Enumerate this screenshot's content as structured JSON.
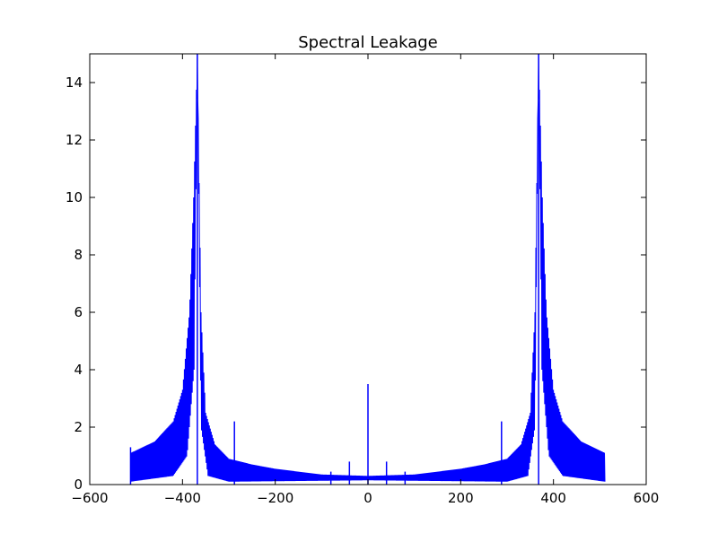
{
  "chart_data": {
    "type": "line",
    "title": "Spectral Leakage",
    "xlabel": "",
    "ylabel": "",
    "xlim": [
      -600,
      600
    ],
    "ylim": [
      0,
      15
    ],
    "x_ticks": [
      -600,
      -400,
      -200,
      0,
      200,
      400,
      600
    ],
    "y_ticks": [
      0,
      2,
      4,
      6,
      8,
      10,
      12,
      14
    ],
    "grid": false,
    "series": [
      {
        "color": "#0000ff",
        "x_range": [
          -512,
          511
        ],
        "peaks": [
          {
            "x": -368,
            "y": 15
          },
          {
            "x": 368,
            "y": 15
          },
          {
            "x": 0,
            "y": 3.5
          },
          {
            "x": -288,
            "y": 2.2
          },
          {
            "x": 288,
            "y": 2.2
          },
          {
            "x": -40,
            "y": 0.8
          },
          {
            "x": 40,
            "y": 0.8
          },
          {
            "x": -80,
            "y": 0.45
          },
          {
            "x": 80,
            "y": 0.45
          },
          {
            "x": -512,
            "y": 1.3
          }
        ],
        "envelope_upper": [
          {
            "x": -512,
            "y": 1.1
          },
          {
            "x": -460,
            "y": 1.5
          },
          {
            "x": -420,
            "y": 2.2
          },
          {
            "x": -400,
            "y": 3.3
          },
          {
            "x": -385,
            "y": 6.0
          },
          {
            "x": -376,
            "y": 10.0
          },
          {
            "x": -368,
            "y": 15
          },
          {
            "x": -360,
            "y": 6.0
          },
          {
            "x": -350,
            "y": 2.5
          },
          {
            "x": -330,
            "y": 1.4
          },
          {
            "x": -300,
            "y": 0.9
          },
          {
            "x": -250,
            "y": 0.7
          },
          {
            "x": -200,
            "y": 0.55
          },
          {
            "x": -100,
            "y": 0.35
          },
          {
            "x": 0,
            "y": 0.3
          },
          {
            "x": 100,
            "y": 0.35
          },
          {
            "x": 200,
            "y": 0.55
          },
          {
            "x": 250,
            "y": 0.7
          },
          {
            "x": 300,
            "y": 0.9
          },
          {
            "x": 330,
            "y": 1.4
          },
          {
            "x": 350,
            "y": 2.5
          },
          {
            "x": 360,
            "y": 6.0
          },
          {
            "x": 368,
            "y": 15
          },
          {
            "x": 376,
            "y": 10.0
          },
          {
            "x": 385,
            "y": 6.0
          },
          {
            "x": 400,
            "y": 3.3
          },
          {
            "x": 420,
            "y": 2.2
          },
          {
            "x": 460,
            "y": 1.5
          },
          {
            "x": 511,
            "y": 1.1
          }
        ],
        "envelope_lower": [
          {
            "x": -512,
            "y": 0.1
          },
          {
            "x": -420,
            "y": 0.3
          },
          {
            "x": -390,
            "y": 1.0
          },
          {
            "x": -375,
            "y": 4.0
          },
          {
            "x": -368,
            "y": 15
          },
          {
            "x": -360,
            "y": 2.0
          },
          {
            "x": -345,
            "y": 0.3
          },
          {
            "x": -300,
            "y": 0.1
          },
          {
            "x": 0,
            "y": 0.15
          },
          {
            "x": 300,
            "y": 0.1
          },
          {
            "x": 345,
            "y": 0.3
          },
          {
            "x": 360,
            "y": 2.0
          },
          {
            "x": 368,
            "y": 15
          },
          {
            "x": 375,
            "y": 4.0
          },
          {
            "x": 390,
            "y": 1.0
          },
          {
            "x": 420,
            "y": 0.3
          },
          {
            "x": 511,
            "y": 0.1
          }
        ]
      }
    ]
  }
}
